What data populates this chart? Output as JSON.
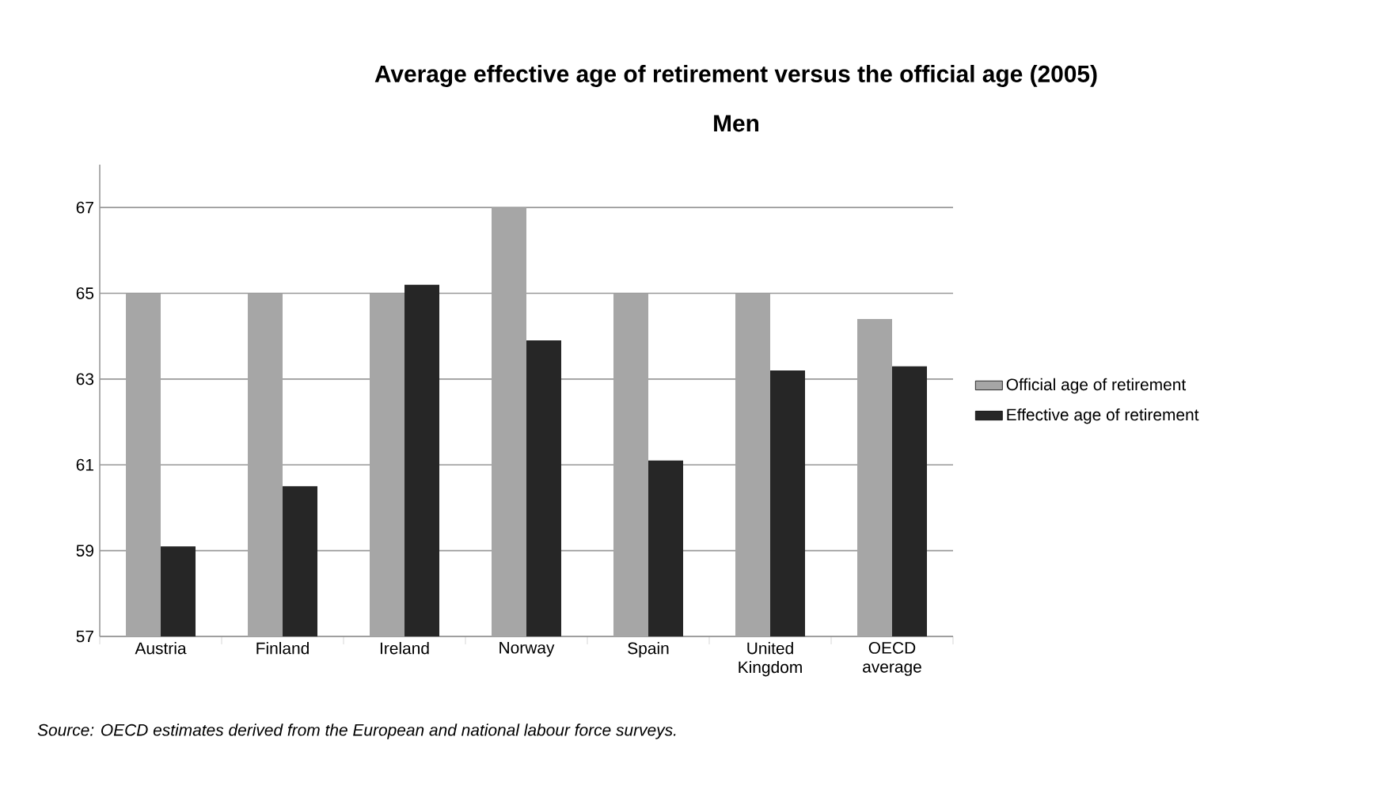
{
  "chart_data": {
    "type": "bar",
    "title": "Average effective age of retirement versus the official age (2005)",
    "subtitle": "Men",
    "categories": [
      "Austria",
      "Finland",
      "Ireland",
      "Norway",
      "Spain",
      "United Kingdom",
      "OECD average"
    ],
    "series": [
      {
        "name": "Official age of retirement",
        "color": "#a6a6a6",
        "values": [
          65,
          65,
          65,
          67,
          65,
          65,
          64.4
        ]
      },
      {
        "name": "Effective age of retirement",
        "color": "#262626",
        "values": [
          59.1,
          60.5,
          65.2,
          63.9,
          61.1,
          63.2,
          63.3
        ]
      }
    ],
    "ylim": [
      57,
      68
    ],
    "yticks": [
      57,
      59,
      61,
      63,
      65,
      67
    ],
    "grid": "y",
    "legend": "right",
    "annotations": [
      "Source: OECD estimates derived from the European and national labour force surveys."
    ]
  }
}
